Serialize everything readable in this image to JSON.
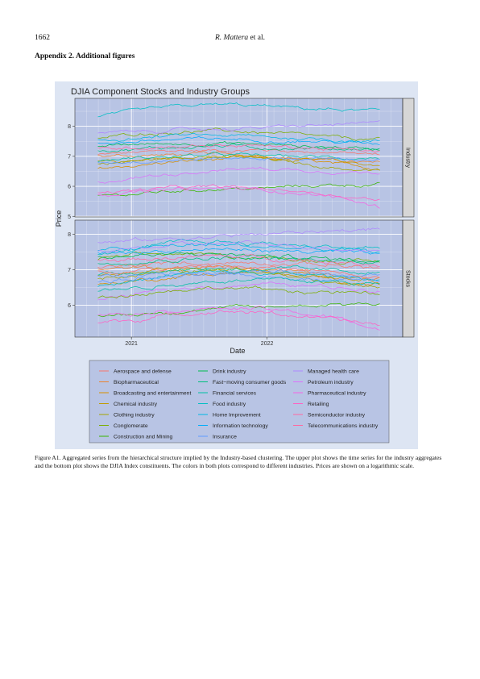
{
  "header": {
    "page_number": "1662",
    "author": "R. Mattera",
    "author_suffix": " et al."
  },
  "section_title": "Appendix 2. Additional figures",
  "figure": {
    "caption": "Figure A1.  Aggregated series from the hierarchical structure implied by the Industry-based clustering. The upper plot shows the time series for the industry aggregates and the bottom plot shows the DJIA Index constituents. The colors in both plots correspond to different industries. Prices are shown on a logarithmic scale."
  },
  "chart_data": {
    "type": "line",
    "title": "DJIA Component Stocks and Industry Groups",
    "xlabel": "Date",
    "ylabel": "Price",
    "x_ticks": [
      "2021",
      "2022"
    ],
    "x_range": [
      "2020-08",
      "2022-12"
    ],
    "y_scale": "logarithmic (natural log of price)",
    "grid": true,
    "legend_position": "bottom",
    "colors": {
      "panel_bg": "#b8c4e4",
      "frame_bg": "#dde5f3",
      "strip_bg": "#d6d6d6",
      "grid": "#ffffff"
    },
    "facets": [
      {
        "label": "Industry",
        "y_ticks": [
          "8",
          "7",
          "6",
          "5"
        ],
        "ylim": [
          4.98,
          8.93
        ],
        "series": [
          {
            "color": "#f8766d",
            "values": [
              7.05,
              7.12,
              7.18,
              7.2,
              7.22,
              7.18,
              7.12,
              7.05
            ]
          },
          {
            "color": "#ea8331",
            "values": [
              7.0,
              7.03,
              7.05,
              7.08,
              7.02,
              6.95,
              6.85,
              6.75
            ]
          },
          {
            "color": "#d89000",
            "values": [
              6.6,
              6.7,
              6.82,
              6.9,
              6.95,
              6.88,
              6.7,
              6.6
            ]
          },
          {
            "color": "#c09b00",
            "values": [
              6.85,
              6.9,
              6.98,
              7.0,
              6.98,
              6.9,
              6.82,
              6.7
            ]
          },
          {
            "color": "#a3a500",
            "values": [
              6.75,
              6.85,
              6.95,
              7.0,
              6.92,
              6.75,
              6.6,
              6.5
            ]
          },
          {
            "color": "#7cae00",
            "values": [
              7.6,
              7.75,
              7.82,
              7.85,
              7.8,
              7.7,
              7.6,
              7.55
            ]
          },
          {
            "color": "#39b600",
            "values": [
              5.7,
              5.75,
              5.85,
              5.92,
              5.92,
              6.0,
              6.05,
              6.05
            ]
          },
          {
            "color": "#00bb4e",
            "values": [
              7.35,
              7.4,
              7.42,
              7.45,
              7.4,
              7.35,
              7.3,
              7.25
            ]
          },
          {
            "color": "#00bf7d",
            "values": [
              7.2,
              7.25,
              7.3,
              7.35,
              7.3,
              7.28,
              7.25,
              7.25
            ]
          },
          {
            "color": "#00c1a3",
            "values": [
              6.85,
              6.95,
              7.0,
              7.05,
              7.02,
              7.0,
              6.95,
              6.95
            ]
          },
          {
            "color": "#00bfc4",
            "values": [
              8.3,
              8.5,
              8.65,
              8.72,
              8.68,
              8.6,
              8.55,
              8.5
            ]
          },
          {
            "color": "#00b9e3",
            "values": [
              7.55,
              7.6,
              7.68,
              7.7,
              7.65,
              7.6,
              7.55,
              7.5
            ]
          },
          {
            "color": "#00adfa",
            "values": [
              7.45,
              7.5,
              7.55,
              7.58,
              7.55,
              7.52,
              7.48,
              7.4
            ]
          },
          {
            "color": "#619cff",
            "values": [
              6.8,
              6.85,
              6.9,
              6.92,
              6.95,
              6.93,
              6.9,
              6.9
            ]
          },
          {
            "color": "#ae87ff",
            "values": [
              7.75,
              7.82,
              7.88,
              7.92,
              7.95,
              8.0,
              8.05,
              8.1
            ]
          },
          {
            "color": "#db72fb",
            "values": [
              6.15,
              6.3,
              6.45,
              6.55,
              6.6,
              6.55,
              6.5,
              6.45
            ]
          },
          {
            "color": "#f564e3",
            "values": [
              5.75,
              5.8,
              5.88,
              5.92,
              5.9,
              5.78,
              5.62,
              5.3
            ]
          },
          {
            "color": "#ff61c3",
            "values": [
              5.8,
              5.88,
              5.95,
              5.97,
              5.92,
              5.85,
              5.7,
              5.55
            ]
          },
          {
            "color": "#ff689f",
            "values": [
              7.25,
              7.3,
              7.35,
              7.38,
              7.35,
              7.3,
              7.22,
              7.15
            ]
          }
        ]
      },
      {
        "label": "Stocks",
        "y_ticks": [
          "8",
          "7",
          "6"
        ],
        "ylim": [
          5.1,
          8.4
        ],
        "series": [
          {
            "color": "#f8766d",
            "values": [
              7.05,
              7.12,
              7.18,
              7.2,
              7.22,
              7.18,
              7.12,
              7.05
            ]
          },
          {
            "color": "#ea8331",
            "values": [
              7.0,
              7.03,
              7.05,
              7.08,
              7.02,
              6.95,
              6.85,
              6.75
            ]
          },
          {
            "color": "#d89000",
            "values": [
              6.6,
              6.7,
              6.82,
              6.9,
              6.95,
              6.88,
              6.7,
              6.6
            ]
          },
          {
            "color": "#c09b00",
            "values": [
              6.85,
              6.9,
              6.98,
              7.0,
              6.98,
              6.9,
              6.82,
              6.7
            ]
          },
          {
            "color": "#a3a500",
            "values": [
              6.75,
              6.85,
              6.95,
              7.0,
              6.92,
              6.75,
              6.6,
              6.5
            ]
          },
          {
            "color": "#7cae00",
            "values": [
              7.3,
              7.4,
              7.45,
              7.4,
              7.35,
              7.3,
              7.25,
              7.2
            ]
          },
          {
            "color": "#39b600",
            "values": [
              5.7,
              5.75,
              5.85,
              5.92,
              5.92,
              6.0,
              6.05,
              6.05
            ]
          },
          {
            "color": "#00bb4e",
            "values": [
              7.35,
              7.4,
              7.42,
              7.45,
              7.4,
              7.35,
              7.3,
              7.25
            ]
          },
          {
            "color": "#00bf7d",
            "values": [
              7.2,
              7.25,
              7.3,
              7.35,
              7.3,
              7.28,
              7.25,
              7.25
            ]
          },
          {
            "color": "#00c1a3",
            "values": [
              6.85,
              6.95,
              7.0,
              7.05,
              7.02,
              7.0,
              6.95,
              6.95
            ]
          },
          {
            "color": "#00bfc4",
            "values": [
              7.4,
              7.6,
              7.75,
              7.8,
              7.75,
              7.7,
              7.65,
              7.6
            ]
          },
          {
            "color": "#00b9e3",
            "values": [
              7.55,
              7.6,
              7.68,
              7.7,
              7.65,
              7.6,
              7.55,
              7.5
            ]
          },
          {
            "color": "#00adfa",
            "values": [
              7.45,
              7.5,
              7.55,
              7.58,
              7.55,
              7.52,
              7.48,
              7.4
            ]
          },
          {
            "color": "#619cff",
            "values": [
              6.8,
              6.85,
              6.9,
              6.92,
              6.95,
              6.93,
              6.9,
              6.9
            ]
          },
          {
            "color": "#ae87ff",
            "values": [
              7.75,
              7.82,
              7.88,
              7.95,
              8.0,
              8.05,
              8.12,
              8.15
            ]
          },
          {
            "color": "#db72fb",
            "values": [
              6.15,
              6.3,
              6.45,
              6.55,
              6.6,
              6.55,
              6.5,
              6.45
            ]
          },
          {
            "color": "#f564e3",
            "values": [
              5.75,
              5.8,
              5.88,
              5.92,
              5.9,
              5.78,
              5.62,
              5.3
            ]
          },
          {
            "color": "#ff61c3",
            "values": [
              5.5,
              5.6,
              5.75,
              5.85,
              5.8,
              5.7,
              5.55,
              5.45
            ]
          },
          {
            "color": "#ff689f",
            "values": [
              7.25,
              7.3,
              7.35,
              7.38,
              7.35,
              7.3,
              7.22,
              7.15
            ]
          },
          {
            "color": "#00bfc4",
            "values": [
              6.55,
              6.7,
              6.85,
              6.95,
              6.9,
              6.85,
              6.8,
              6.75
            ]
          },
          {
            "color": "#619cff",
            "values": [
              6.65,
              6.75,
              6.8,
              6.85,
              6.8,
              6.78,
              6.75,
              6.7
            ]
          },
          {
            "color": "#f8766d",
            "values": [
              6.95,
              7.0,
              7.05,
              7.1,
              7.05,
              7.0,
              6.95,
              6.85
            ]
          },
          {
            "color": "#00c1a3",
            "values": [
              6.4,
              6.5,
              6.6,
              6.7,
              6.72,
              6.68,
              6.65,
              6.6
            ]
          },
          {
            "color": "#7cae00",
            "values": [
              6.2,
              6.35,
              6.45,
              6.5,
              6.45,
              6.4,
              6.35,
              6.3
            ]
          },
          {
            "color": "#ae87ff",
            "values": [
              7.5,
              7.6,
              7.7,
              7.75,
              7.72,
              7.68,
              7.62,
              7.55
            ]
          }
        ]
      }
    ],
    "legend": [
      [
        {
          "label": "Aerospace and defense",
          "color": "#f8766d"
        },
        {
          "label": "Biopharmaceutical",
          "color": "#ea8331"
        },
        {
          "label": "Broadcasting and entertainment",
          "color": "#d89000"
        },
        {
          "label": "Chemical industry",
          "color": "#c09b00"
        },
        {
          "label": "Clothing industry",
          "color": "#a3a500"
        },
        {
          "label": "Conglomerate",
          "color": "#7cae00"
        },
        {
          "label": "Construction and Mining",
          "color": "#39b600"
        }
      ],
      [
        {
          "label": "Drink industry",
          "color": "#00bb4e"
        },
        {
          "label": "Fast−moving consumer goods",
          "color": "#00bf7d"
        },
        {
          "label": "Financial services",
          "color": "#00c1a3"
        },
        {
          "label": "Food industry",
          "color": "#00bfc4"
        },
        {
          "label": "Home Improvement",
          "color": "#00b9e3"
        },
        {
          "label": "Information technology",
          "color": "#00adfa"
        },
        {
          "label": "Insurance",
          "color": "#619cff"
        }
      ],
      [
        {
          "label": "Managed health care",
          "color": "#ae87ff"
        },
        {
          "label": "Petroleum industry",
          "color": "#db72fb"
        },
        {
          "label": "Pharmaceutical industry",
          "color": "#f564e3"
        },
        {
          "label": "Retailing",
          "color": "#ff61c3"
        },
        {
          "label": "Semiconductor industry",
          "color": "#ff689f"
        },
        {
          "label": "Telecommunications industry",
          "color": "#ff689f"
        }
      ]
    ]
  }
}
